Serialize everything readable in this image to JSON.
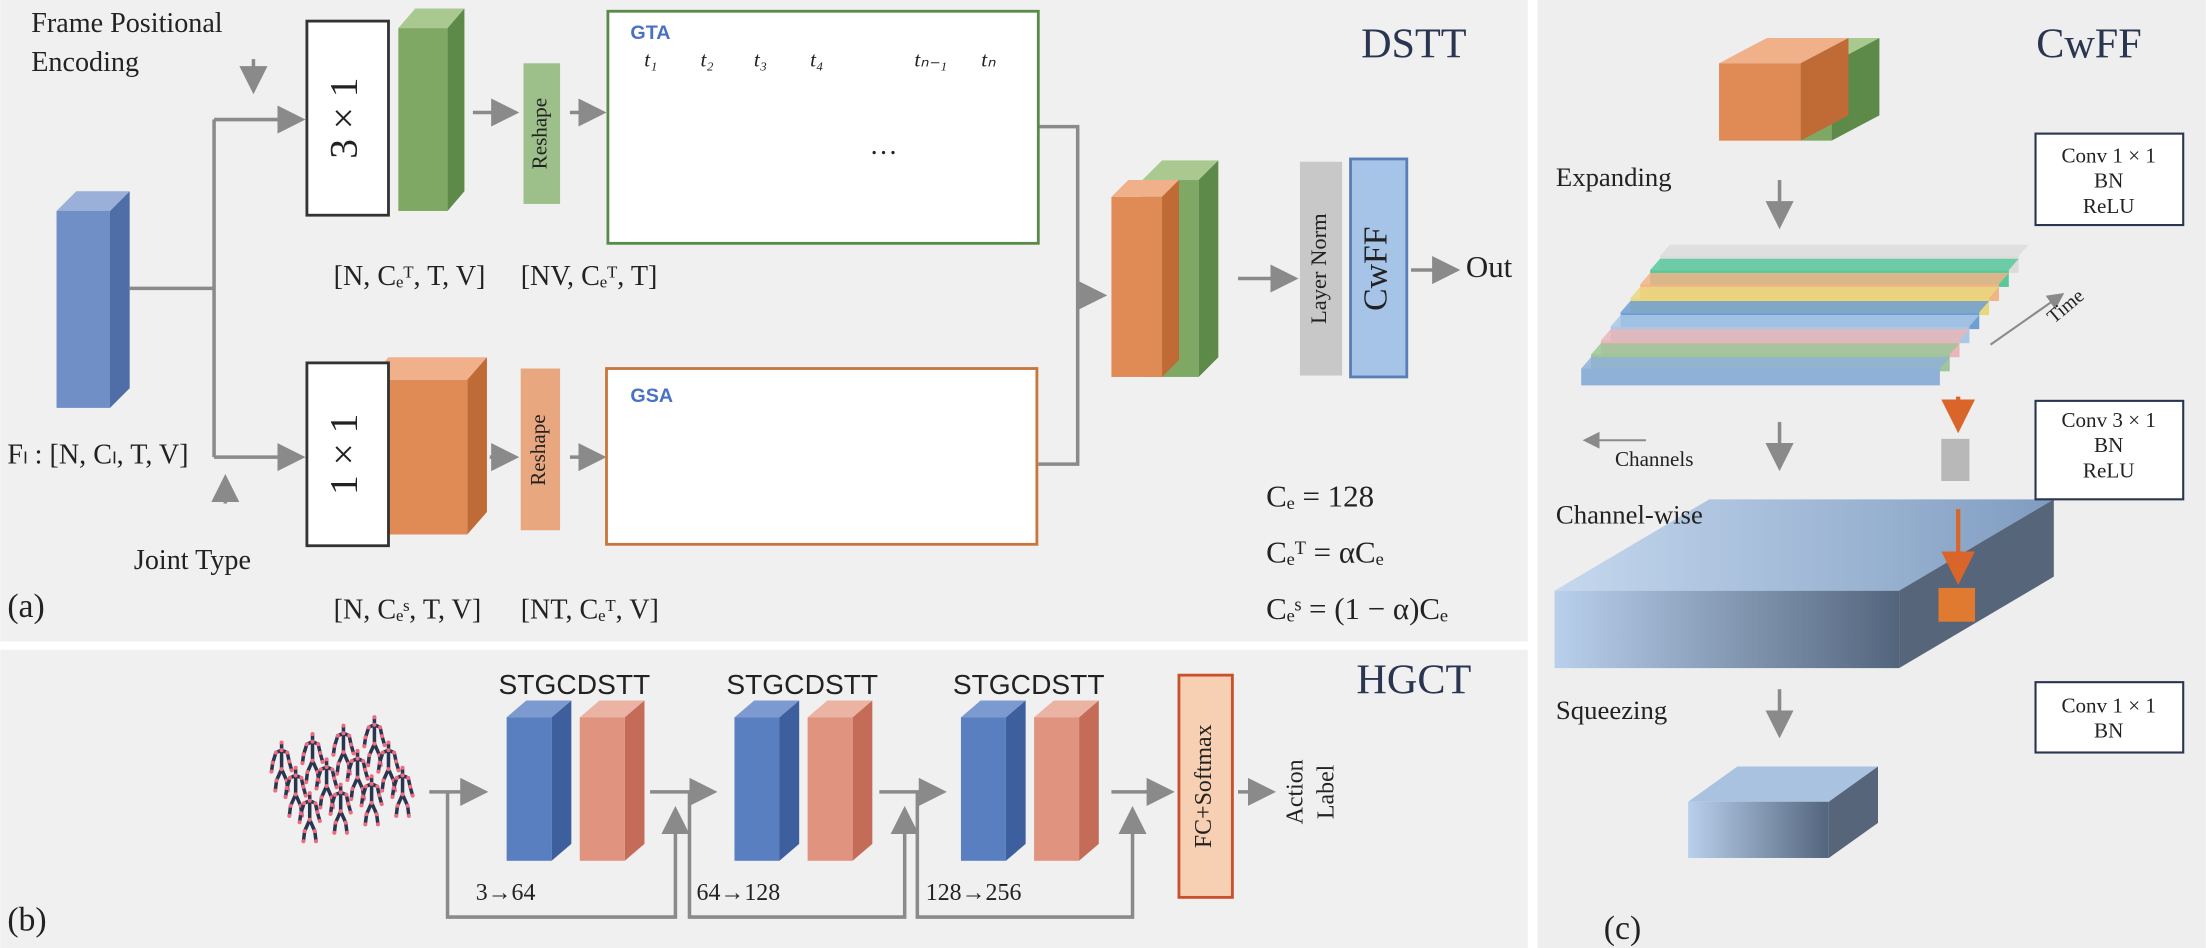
{
  "panel_a": {
    "label": "(a)",
    "title": "DSTT",
    "input_shape": "Fₗ : [N, Cₗ, T, V]",
    "frame_positional_encoding": [
      "Frame Positional",
      "Encoding"
    ],
    "joint_type": "Joint Type",
    "temporal": {
      "conv": "3 × 1",
      "reshape": "Reshape",
      "conv_shape": "[N, Cₑᵀ, T, V]",
      "reshape_shape": "[NV, Cₑᵀ, T]",
      "attention": "GTA",
      "frames": [
        "t₁",
        "t₂",
        "t₃",
        "t₄",
        "tₙ₋₁",
        "tₙ"
      ],
      "ellipsis": "…"
    },
    "spatial": {
      "conv": "1 × 1",
      "reshape": "Reshape",
      "conv_shape": "[N, Cₑˢ, T, V]",
      "reshape_shape": "[NT, Cₑᵀ, V]",
      "attention": "GSA"
    },
    "layer_norm": "Layer Norm",
    "cwff": "CwFF",
    "output": "Out",
    "equations": [
      "Cₑ = 128",
      "Cₑᵀ = αCₑ",
      "Cₑˢ = (1 − α)Cₑ"
    ]
  },
  "panel_b": {
    "label": "(b)",
    "title": "HGCT",
    "stages": [
      {
        "stgc": "STGC",
        "dstt": "DSTT",
        "channels": "3→64"
      },
      {
        "stgc": "STGC",
        "dstt": "DSTT",
        "channels": "64→128"
      },
      {
        "stgc": "STGC",
        "dstt": "DSTT",
        "channels": "128→256"
      }
    ],
    "classifier": "FC+Softmax",
    "output": [
      "Action",
      "Label"
    ]
  },
  "panel_c": {
    "label": "(c)",
    "title": "CwFF",
    "steps": [
      {
        "name": "Expanding",
        "ops": [
          "Conv 1 × 1",
          "BN",
          "ReLU"
        ]
      },
      {
        "name": "Channel-wise",
        "ops": [
          "Conv 3 × 1",
          "BN",
          "ReLU"
        ]
      },
      {
        "name": "Squeezing",
        "ops": [
          "Conv 1 × 1",
          "BN"
        ]
      }
    ],
    "time_axis": "Time",
    "channel_axis": "Channels"
  }
}
